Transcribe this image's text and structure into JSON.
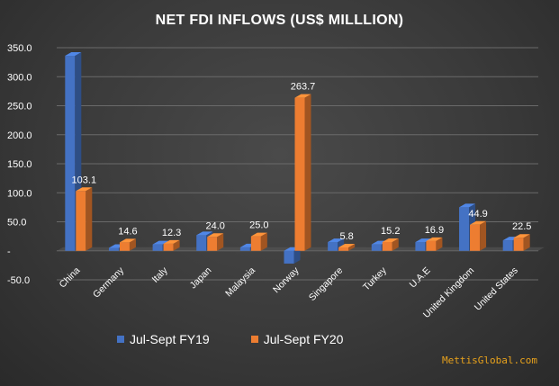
{
  "chart_data": {
    "type": "bar",
    "title": "NET FDI INFLOWS (US$ MILLLION)",
    "categories": [
      "China",
      "Germany",
      "Italy",
      "Japan",
      "Malaysia",
      "Norway",
      "Singapore",
      "Turkey",
      "U.A.E",
      "United Kingdom",
      "United States"
    ],
    "series": [
      {
        "name": "Jul-Sept  FY19",
        "color": "#4472c4",
        "values": [
          336.0,
          5.0,
          11.0,
          27.0,
          6.0,
          -22.0,
          15.0,
          11.0,
          15.0,
          75.0,
          18.0
        ]
      },
      {
        "name": "Jul-Sept  FY20",
        "color": "#ed7d31",
        "values": [
          103.1,
          14.6,
          12.3,
          24.0,
          25.0,
          263.7,
          5.8,
          15.2,
          16.9,
          44.9,
          22.5
        ],
        "data_labels": [
          "103.1",
          "14.6",
          "12.3",
          "24.0",
          "25.0",
          "263.7",
          "5.8",
          "15.2",
          "16.9",
          "44.9",
          "22.5"
        ]
      }
    ],
    "ylim": [
      -50,
      350
    ],
    "yticks": [
      -50,
      0,
      50,
      100,
      150,
      200,
      250,
      300,
      350
    ],
    "ytick_labels": [
      "-50.0",
      "-",
      "50.0",
      "100.0",
      "150.0",
      "200.0",
      "250.0",
      "300.0",
      "350.0"
    ],
    "grid": true,
    "legend_position": "bottom-left"
  },
  "watermark": "MettisGlobal.com"
}
